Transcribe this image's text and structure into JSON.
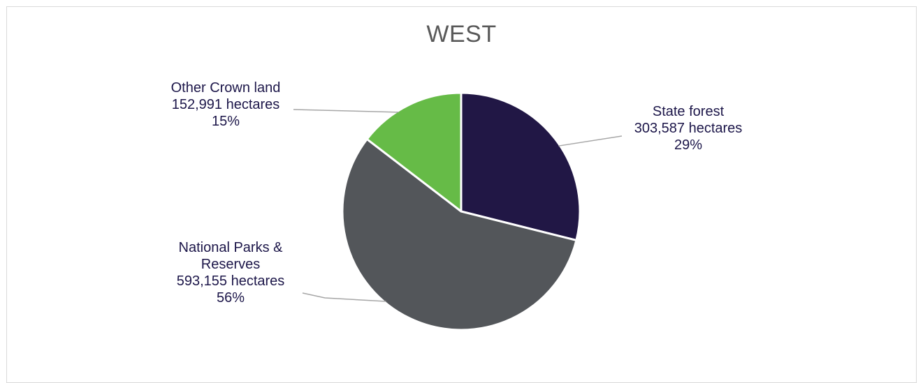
{
  "chart_data": {
    "type": "pie",
    "title": "WEST",
    "slices": [
      {
        "name": "State forest",
        "value": 303587,
        "value_text": "303,587 hectares",
        "percent": 29,
        "percent_text": "29%",
        "color": "#211745"
      },
      {
        "name": "National Parks & Reserves",
        "name_lines": [
          "National Parks &",
          "Reserves"
        ],
        "value": 593155,
        "value_text": "593,155  hectares",
        "percent": 56,
        "percent_text": "56%",
        "color": "#53565a"
      },
      {
        "name": "Other Crown land",
        "value": 152991,
        "value_text": "152,991  hectares",
        "percent": 15,
        "percent_text": "15%",
        "color": "#66bb47"
      }
    ],
    "start_angle_deg": 0,
    "direction": "clockwise",
    "legend": "none",
    "label_color": "#1c1649",
    "title_color": "#595959",
    "leader_line_color": "#a6a6a6"
  }
}
